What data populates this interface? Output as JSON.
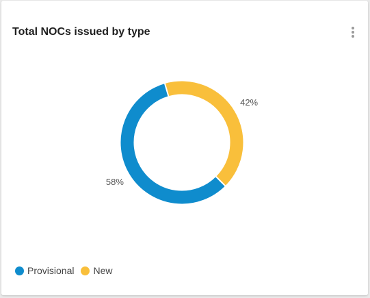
{
  "card": {
    "title": "Total NOCs issued by type",
    "menu_icon": "vertical-dots-icon"
  },
  "chart_data": {
    "type": "pie",
    "variant": "donut",
    "title": "Total NOCs issued by type",
    "categories": [
      "Provisional",
      "New"
    ],
    "values": [
      58,
      42
    ],
    "labels": [
      "58%",
      "42%"
    ],
    "colors": [
      "#0f8ccd",
      "#f9bf3b"
    ],
    "legend_position": "bottom-left"
  }
}
